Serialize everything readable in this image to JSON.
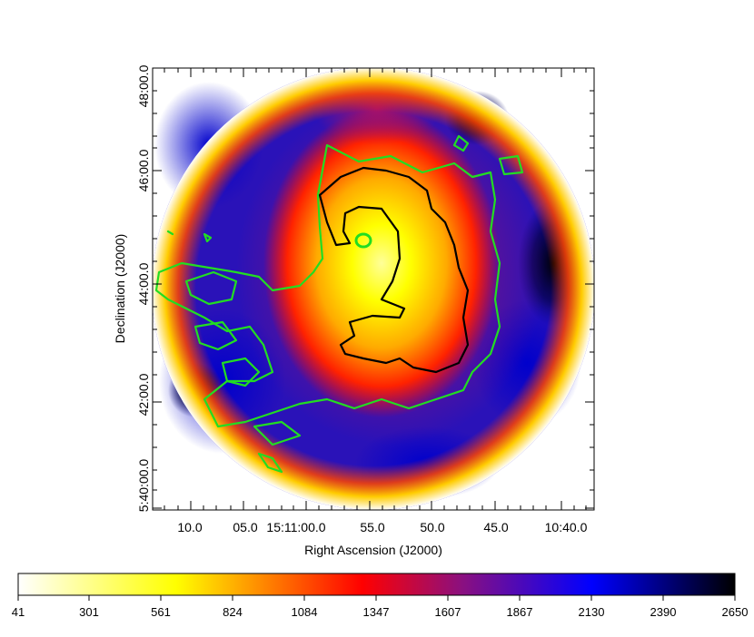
{
  "chart_data": {
    "type": "heatmap",
    "xlabel": "Right Ascension (J2000)",
    "ylabel": "Declination (J2000)",
    "x_tick_labels": [
      "10.0",
      "05.0",
      "15:11:00.0",
      "55.0",
      "50.0",
      "45.0",
      "10:40.0"
    ],
    "y_tick_labels": [
      "5:40:00.0",
      "42:00.0",
      "44:00.0",
      "46:00.0",
      "48:00.0"
    ],
    "colorbar": {
      "tick_labels": [
        "41",
        "301",
        "561",
        "824",
        "1084",
        "1347",
        "1607",
        "1867",
        "2130",
        "2390",
        "2650"
      ],
      "range": [
        41,
        2650
      ],
      "colormap": [
        "#ffffff",
        "#ffff00",
        "#ff0000",
        "#0000ff",
        "#000000"
      ]
    },
    "contours": [
      {
        "color": "#22dd22",
        "level_description": "outer green contour"
      },
      {
        "color": "#000000",
        "level_description": "inner black contour"
      }
    ],
    "grid": false
  }
}
